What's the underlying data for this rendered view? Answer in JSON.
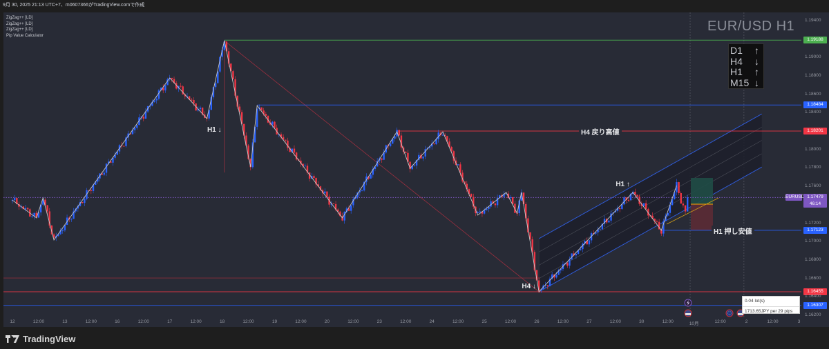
{
  "header": {
    "text": "9月 30, 2025 21:13 UTC+7、m0607366がTradingView.comで作成"
  },
  "legend": [
    "ZigZag++ [LD]",
    "ZigZag++ [LD]",
    "ZigZag++ [LD]",
    "Pip Value Calculator"
  ],
  "chart_title": "EUR/USD H1",
  "trend_table": [
    {
      "tf": "D1",
      "arrow": "↑"
    },
    {
      "tf": "H4",
      "arrow": "↓"
    },
    {
      "tf": "H1",
      "arrow": "↑"
    },
    {
      "tf": "M15",
      "arrow": "↓"
    }
  ],
  "colors": {
    "up": "#2962ff",
    "down": "#f23645",
    "zigzag": "#c8c8c8",
    "channel": "#2f5bd8",
    "current": "#7e57c2"
  },
  "chart_data": {
    "type": "candlestick",
    "symbol": "EURUSD",
    "timeframe": "H1",
    "x_ticks": [
      "12",
      "12:00",
      "13",
      "12:00",
      "16",
      "12:00",
      "17",
      "12:00",
      "18",
      "12:00",
      "19",
      "12:00",
      "20",
      "12:00",
      "23",
      "12:00",
      "24",
      "12:00",
      "25",
      "12:00",
      "26",
      "12:00",
      "27",
      "12:00",
      "30",
      "12:00",
      "10月",
      "12:00",
      "2",
      "12:00",
      "3"
    ],
    "y_ticks": [
      "1.19400",
      "1.19000",
      "1.18800",
      "1.18600",
      "1.18400",
      "1.18000",
      "1.17800",
      "1.17600",
      "1.17200",
      "1.17000",
      "1.16800",
      "1.16600",
      "1.16400",
      "1.16200"
    ],
    "ylim": [
      1.1615,
      1.1955
    ],
    "price_path": [
      [
        "12 00:00",
        1.1745
      ],
      [
        "12 11:00",
        1.17257
      ],
      [
        "12 14:00",
        1.17474
      ],
      [
        "12 19:00",
        1.17017
      ],
      [
        "17 00:00",
        1.18778
      ],
      [
        "17 17:00",
        1.18336
      ],
      [
        "18 01:00",
        1.19183
      ],
      [
        "18 13:00",
        1.17811
      ],
      [
        "18 16:00",
        1.18478
      ],
      [
        "20 07:00",
        1.17257
      ],
      [
        "23 08:00",
        1.18193
      ],
      [
        "23 14:00",
        1.17796
      ],
      [
        "24 05:00",
        1.18193
      ],
      [
        "24 21:00",
        1.17287
      ],
      [
        "25 10:00",
        1.17534
      ],
      [
        "25 15:00",
        1.17309
      ],
      [
        "25 17:00",
        1.17534
      ],
      [
        "26 01:00",
        1.16455
      ],
      [
        "27 20:00",
        1.17534
      ],
      [
        "30 09:00",
        1.17122
      ],
      [
        "30 16:00",
        1.17609
      ],
      [
        "30 20:00",
        1.17302
      ],
      [
        "30 21:00",
        1.17479
      ]
    ],
    "last_price": "1.17479",
    "countdown": "46:14",
    "levels": [
      {
        "price": "1.19188",
        "color": "#4caf50",
        "from": "18 01:00",
        "label": ""
      },
      {
        "price": "1.18484",
        "color": "#2962ff",
        "from": "18 16:00",
        "label": ""
      },
      {
        "price": "1.18201",
        "color": "#f23645",
        "from": "23 08:00",
        "label": "H4 戻り高値"
      },
      {
        "price": "1.17123",
        "color": "#2962ff",
        "from": "30 09:00",
        "label": "H1 押し安値"
      },
      {
        "price": "1.16455",
        "color": "#f23645",
        "from": "",
        "label": ""
      },
      {
        "price": "1.16307",
        "color": "#2962ff",
        "from": "",
        "label": ""
      }
    ],
    "annotations": [
      {
        "text": "H1 ↓",
        "t": "17 20:00",
        "price": 1.182
      },
      {
        "text": "H1 ↑",
        "t": "27 15:00",
        "price": 1.1761
      },
      {
        "text": "H4 ↓",
        "t": "25 20:00",
        "price": 1.165
      }
    ],
    "channel": {
      "start": [
        "26 01:00",
        1.16455
      ],
      "end": [
        "2 07:00",
        1.1781
      ],
      "width": 0.00577
    }
  },
  "pip_calc": {
    "lots": "0.04 lot(s)",
    "value": "1713.65JPY per 29 pips"
  },
  "footer": {
    "brand": "TradingView"
  }
}
